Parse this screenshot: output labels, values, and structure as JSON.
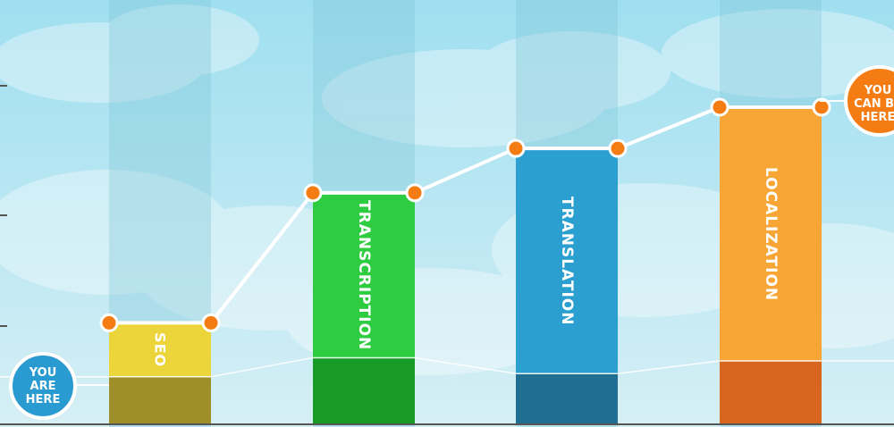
{
  "chart_data": {
    "type": "bar",
    "categories": [
      "SEO",
      "TRANSCRIPTION",
      "TRANSLATION",
      "LOCALIZATION"
    ],
    "series": [
      {
        "values": [
          0.32,
          0.73,
          0.87,
          1.0
        ]
      },
      {
        "values": [
          0.15,
          0.21,
          0.16,
          0.2
        ]
      }
    ],
    "ylim": [
      0,
      1.1
    ],
    "grid": false,
    "legend": "none"
  },
  "badges": {
    "current": [
      "YOU",
      "ARE",
      "HERE"
    ],
    "target": [
      "YOU",
      "CAN BE",
      "HERE"
    ]
  },
  "colors": {
    "sky_top": "#9fdff0",
    "sky_bottom": "#d6eff5",
    "column_band": "#7fc6d8",
    "bar_tops": [
      "#ecd53a",
      "#2ecc40",
      "#2a9fd0",
      "#f7a535"
    ],
    "bar_bases": [
      "#9e8f2a",
      "#179a26",
      "#206f92",
      "#d8661f"
    ],
    "marker": "#f57c12",
    "badge_current": "#2a9bd0",
    "badge_target": "#f57c12",
    "axis": "#555555"
  }
}
